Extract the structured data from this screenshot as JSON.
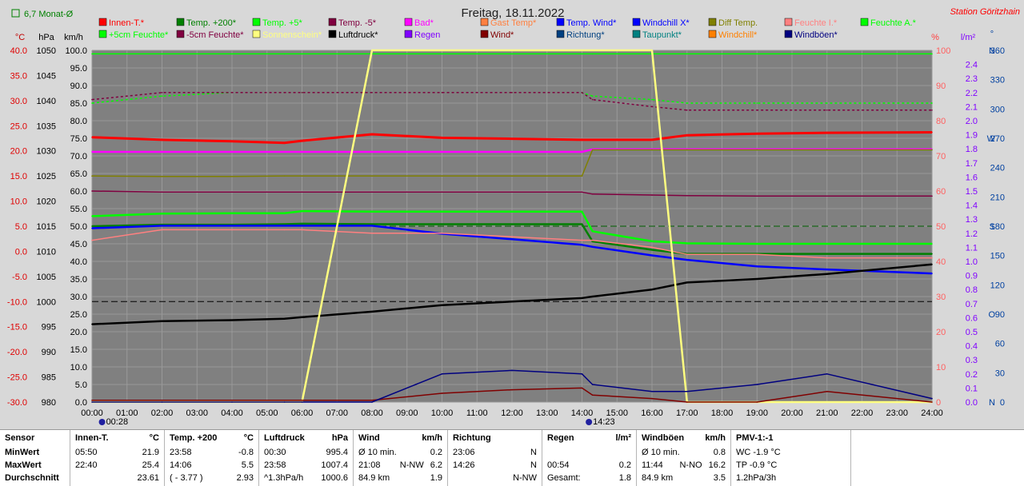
{
  "header": {
    "title": "Freitag, 18.11.2022",
    "station": "Station Göritzhain",
    "monthly_label": "6,7 Monat-Ø"
  },
  "legend": [
    {
      "label": "Innen-T.*",
      "color": "#ff0000"
    },
    {
      "label": "Temp. +200*",
      "color": "#008000"
    },
    {
      "label": "Temp. +5*",
      "color": "#00ff00"
    },
    {
      "label": "Temp. -5*",
      "color": "#800040"
    },
    {
      "label": "Bad*",
      "color": "#ff00ff"
    },
    {
      "label": "Gast Temp*",
      "color": "#ff8040"
    },
    {
      "label": "Temp. Wind*",
      "color": "#0000ff"
    },
    {
      "label": "Windchill X*",
      "color": "#0000ff"
    },
    {
      "label": "Diff Temp.",
      "color": "#808000"
    },
    {
      "label": "Feuchte I.*",
      "color": "#ff8080"
    },
    {
      "label": "Feuchte A.*",
      "color": "#00ff00"
    },
    {
      "label": "+5cm Feuchte*",
      "color": "#00ff00"
    },
    {
      "label": "-5cm Feuchte*",
      "color": "#800040"
    },
    {
      "label": "Sonnenschein*",
      "color": "#ffff80"
    },
    {
      "label": "Luftdruck*",
      "color": "#000000"
    },
    {
      "label": "Regen",
      "color": "#8000ff"
    },
    {
      "label": "Wind*",
      "color": "#800000"
    },
    {
      "label": "Richtung*",
      "color": "#004080"
    },
    {
      "label": "Taupunkt*",
      "color": "#008080"
    },
    {
      "label": "Windchill*",
      "color": "#ff8000"
    },
    {
      "label": "Windböen*",
      "color": "#000080"
    }
  ],
  "axes": {
    "temp": {
      "unit": "°C",
      "ticks": [
        "40.0",
        "35.0",
        "30.0",
        "25.0",
        "20.0",
        "15.0",
        "10.0",
        "5.0",
        "0.0",
        "-5.0",
        "-10.0",
        "-15.0",
        "-20.0",
        "-25.0",
        "-30.0"
      ]
    },
    "pressure": {
      "unit": "hPa",
      "ticks": [
        "1050",
        "1045",
        "1040",
        "1035",
        "1030",
        "1025",
        "1020",
        "1015",
        "1010",
        "1005",
        "1000",
        "995",
        "990",
        "985",
        "980"
      ]
    },
    "wind": {
      "unit": "km/h",
      "ticks": [
        "100.0",
        "95.0",
        "90.0",
        "85.0",
        "80.0",
        "75.0",
        "70.0",
        "65.0",
        "60.0",
        "55.0",
        "50.0",
        "45.0",
        "40.0",
        "35.0",
        "30.0",
        "25.0",
        "20.0",
        "15.0",
        "10.0",
        "5.0",
        "0.0"
      ]
    },
    "percent": {
      "unit": "%",
      "ticks": [
        "100",
        "90",
        "80",
        "70",
        "60",
        "50",
        "40",
        "30",
        "20",
        "10",
        "0"
      ]
    },
    "rain": {
      "unit": "l/m²",
      "ticks": [
        "2.4",
        "2.3",
        "2.2",
        "2.1",
        "2.0",
        "1.9",
        "1.8",
        "1.7",
        "1.6",
        "1.5",
        "1.4",
        "1.3",
        "1.2",
        "1.1",
        "1.0",
        "0.9",
        "0.8",
        "0.7",
        "0.6",
        "0.5",
        "0.4",
        "0.3",
        "0.2",
        "0.1",
        "0.0"
      ]
    },
    "direction": {
      "unit": "°",
      "ticks": [
        [
          "360",
          "N"
        ],
        [
          "330",
          ""
        ],
        [
          "300",
          ""
        ],
        [
          "270",
          "W"
        ],
        [
          "240",
          ""
        ],
        [
          "210",
          ""
        ],
        [
          "180",
          "S"
        ],
        [
          "150",
          ""
        ],
        [
          "120",
          ""
        ],
        [
          "90",
          "O"
        ],
        [
          "60",
          ""
        ],
        [
          "30",
          ""
        ],
        [
          "0",
          "N"
        ]
      ]
    },
    "time": {
      "ticks": [
        "00:00",
        "01:00",
        "02:00",
        "03:00",
        "04:00",
        "05:00",
        "06:00",
        "07:00",
        "08:00",
        "09:00",
        "10:00",
        "11:00",
        "12:00",
        "13:00",
        "14:00",
        "15:00",
        "16:00",
        "17:00",
        "18:00",
        "19:00",
        "20:00",
        "21:00",
        "22:00",
        "23:00",
        "24:00"
      ]
    },
    "sunrise": "00:28",
    "sunset": "14:23"
  },
  "chart_data": {
    "type": "line",
    "x_hours": [
      0,
      2,
      4,
      5.5,
      6,
      8,
      10,
      12,
      14,
      14.3,
      16,
      17,
      19,
      21,
      24
    ],
    "series": [
      {
        "name": "Innen-T.*",
        "color": "#ff0000",
        "axis": "temp",
        "values": [
          22.7,
          22.2,
          21.9,
          21.6,
          22.0,
          23.3,
          22.6,
          22.4,
          22.2,
          22.2,
          22.2,
          23.1,
          23.4,
          23.6,
          23.7
        ]
      },
      {
        "name": "Temp. +200*",
        "color": "#008000",
        "axis": "temp",
        "values": [
          5.0,
          5.3,
          5.3,
          5.4,
          5.5,
          5.4,
          5.4,
          5.4,
          5.4,
          2.0,
          0.3,
          -0.5,
          -0.5,
          -0.5,
          -0.5
        ]
      },
      {
        "name": "Temp. +5*",
        "color": "#00ff00",
        "axis": "temp",
        "values": [
          7.0,
          7.5,
          7.6,
          7.6,
          8.0,
          7.9,
          7.9,
          7.9,
          7.9,
          4.0,
          2.0,
          1.6,
          1.5,
          1.5,
          1.5
        ]
      },
      {
        "name": "Temp. -5*",
        "color": "#800040",
        "axis": "temp",
        "values": [
          12.0,
          11.8,
          11.8,
          11.8,
          11.8,
          11.8,
          11.8,
          11.8,
          11.8,
          11.4,
          11.2,
          11.1,
          11.0,
          11.0,
          11.0
        ]
      },
      {
        "name": "Bad*",
        "color": "#ff00ff",
        "axis": "temp",
        "values": [
          19.8,
          19.8,
          19.8,
          19.8,
          19.8,
          19.8,
          19.8,
          19.8,
          19.8,
          20.3,
          20.3,
          20.3,
          20.3,
          20.3,
          20.3
        ]
      },
      {
        "name": "Temp. Wind*",
        "color": "#0000ff",
        "axis": "temp",
        "values": [
          4.6,
          5.1,
          5.1,
          5.1,
          5.1,
          5.1,
          3.5,
          2.4,
          1.3,
          0.9,
          -0.8,
          -1.7,
          -3.0,
          -3.6,
          -4.4
        ]
      },
      {
        "name": "Diff Temp.",
        "color": "#808000",
        "axis": "temp",
        "values": [
          15.0,
          14.9,
          14.9,
          15.0,
          15.0,
          15.0,
          15.0,
          15.0,
          15.0,
          20.2,
          20.2,
          20.2,
          20.2,
          20.2,
          20.2
        ]
      },
      {
        "name": "Luftdruck*",
        "color": "#000000",
        "axis": "pressure",
        "values": [
          995.5,
          996.1,
          996.3,
          996.6,
          996.9,
          998.0,
          999.3,
          1000.0,
          1000.7,
          1001.0,
          1002.4,
          1003.8,
          1004.5,
          1005.5,
          1007.4
        ]
      },
      {
        "name": "Feuchte I.*",
        "color": "#ff8080",
        "axis": "percent",
        "values": [
          46,
          49,
          49,
          49,
          49,
          48,
          48,
          47,
          46,
          46,
          44,
          42,
          42,
          41,
          41
        ]
      },
      {
        "name": "Feuchte A.*",
        "color": "#00ff00",
        "axis": "percent",
        "values": [
          99,
          99,
          99,
          99,
          99,
          99,
          99,
          99,
          99,
          99,
          99,
          99,
          99,
          99,
          99
        ]
      },
      {
        "name": "+5cm Feuchte*",
        "color": "#00ff00",
        "axis": "percent",
        "values": [
          85,
          87,
          88,
          88,
          88,
          88,
          88,
          88,
          88,
          87,
          86,
          85,
          85,
          85,
          85
        ]
      },
      {
        "name": "-5cm Feuchte*",
        "color": "#800040",
        "axis": "percent",
        "values": [
          86,
          88,
          88,
          88,
          88,
          88,
          88,
          88,
          88,
          86,
          84,
          83,
          83,
          83,
          83
        ]
      },
      {
        "name": "Sonnenschein*",
        "color": "#ffff80",
        "axis": "percent",
        "values": [
          0,
          0,
          0,
          0,
          0,
          100,
          100,
          100,
          100,
          100,
          100,
          0,
          0,
          0,
          0
        ]
      },
      {
        "name": "Wind*",
        "color": "#800000",
        "axis": "wind",
        "values": [
          0.5,
          0.5,
          0.5,
          0.5,
          0.5,
          0.5,
          2.5,
          3.5,
          4,
          2,
          1,
          0,
          0,
          3,
          0
        ]
      },
      {
        "name": "Windböen*",
        "color": "#000080",
        "axis": "wind",
        "values": [
          0,
          0,
          0,
          0,
          0,
          0,
          8,
          9,
          8,
          5,
          3,
          3,
          5,
          8,
          1
        ]
      }
    ],
    "tables": {
      "headers": [
        "Sensor",
        "Innen-T. °C",
        "Temp. +200 °C",
        "Luftdruck hPa",
        "Wind km/h",
        "Richtung",
        "Regen l/m²",
        "Windböen km/h",
        "PMV-1:-1"
      ]
    },
    "ylim_temp": [
      -30,
      40
    ],
    "ylim_pressure": [
      980,
      1050
    ],
    "xlim_hours": [
      0,
      24
    ]
  },
  "footer": {
    "sensor": {
      "title": "Sensor",
      "rows": [
        "MinWert",
        "MaxWert",
        "Durchschnitt"
      ]
    },
    "blocks": [
      {
        "title": "Innen-T.",
        "unit": "°C",
        "rows": [
          [
            "05:50",
            "",
            "21.9"
          ],
          [
            "22:40",
            "",
            "25.4"
          ],
          [
            "",
            "",
            "23.61"
          ]
        ]
      },
      {
        "title": "Temp. +200",
        "unit": "°C",
        "rows": [
          [
            "23:58",
            "",
            "-0.8"
          ],
          [
            "14:06",
            "",
            "5.5"
          ],
          [
            "( - 3.77 )",
            "",
            "2.93"
          ]
        ]
      },
      {
        "title": "Luftdruck",
        "unit": "hPa",
        "rows": [
          [
            "00:30",
            "",
            "995.4"
          ],
          [
            "23:58",
            "",
            "1007.4"
          ],
          [
            "^1.3hPa/h",
            "",
            "1000.6"
          ]
        ]
      },
      {
        "title": "Wind",
        "unit": "km/h",
        "rows": [
          [
            "Ø 10 min.",
            "",
            "0.2"
          ],
          [
            "21:08",
            "N-NW",
            "6.2"
          ],
          [
            "84.9 km",
            "",
            "1.9"
          ]
        ]
      },
      {
        "title": "Richtung",
        "unit": "",
        "rows": [
          [
            "23:06",
            "",
            "N"
          ],
          [
            "14:26",
            "",
            "N"
          ],
          [
            "",
            "",
            "N-NW"
          ]
        ]
      },
      {
        "title": "Regen",
        "unit": "l/m²",
        "rows": [
          [
            "",
            "",
            ""
          ],
          [
            "00:54",
            "",
            "0.2"
          ],
          [
            "Gesamt:",
            "",
            "1.8"
          ]
        ]
      },
      {
        "title": "Windböen",
        "unit": "km/h",
        "rows": [
          [
            "Ø 10 min.",
            "",
            "0.8"
          ],
          [
            "11:44",
            "N-NO",
            "16.2"
          ],
          [
            "84.9 km",
            "",
            "3.5"
          ]
        ]
      },
      {
        "title": "PMV-1:-1",
        "unit": "",
        "rows": [
          [
            "WC -1.9 °C",
            "",
            ""
          ],
          [
            "TP -0.9 °C",
            "",
            ""
          ],
          [
            "1.2hPa/3h",
            "",
            ""
          ]
        ]
      }
    ]
  }
}
